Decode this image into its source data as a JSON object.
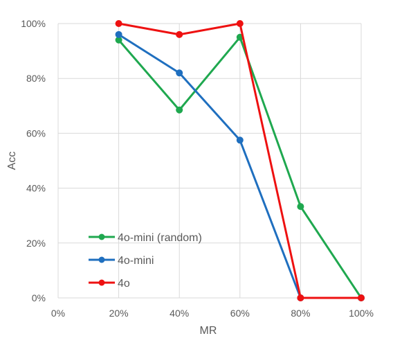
{
  "chart_data": {
    "type": "line",
    "xlabel": "MR",
    "ylabel": "Acc",
    "x": [
      0.2,
      0.4,
      0.6,
      0.8,
      1.0
    ],
    "xlim": [
      0,
      1
    ],
    "ylim": [
      0,
      1
    ],
    "xticks": [
      "0%",
      "20%",
      "40%",
      "60%",
      "80%",
      "100%"
    ],
    "yticks": [
      "0%",
      "20%",
      "40%",
      "60%",
      "80%",
      "100%"
    ],
    "grid": true,
    "legend_position": "bottom-left",
    "series": [
      {
        "name": "4o-mini (random)",
        "color": "#1fa84f",
        "values": [
          0.94,
          0.685,
          0.95,
          0.333,
          0.0
        ]
      },
      {
        "name": "4o-mini",
        "color": "#1f6fbf",
        "values": [
          0.96,
          0.82,
          0.575,
          0.0,
          0.0
        ]
      },
      {
        "name": "4o",
        "color": "#ee1111",
        "values": [
          1.0,
          0.96,
          1.0,
          0.0,
          0.0
        ]
      }
    ]
  }
}
